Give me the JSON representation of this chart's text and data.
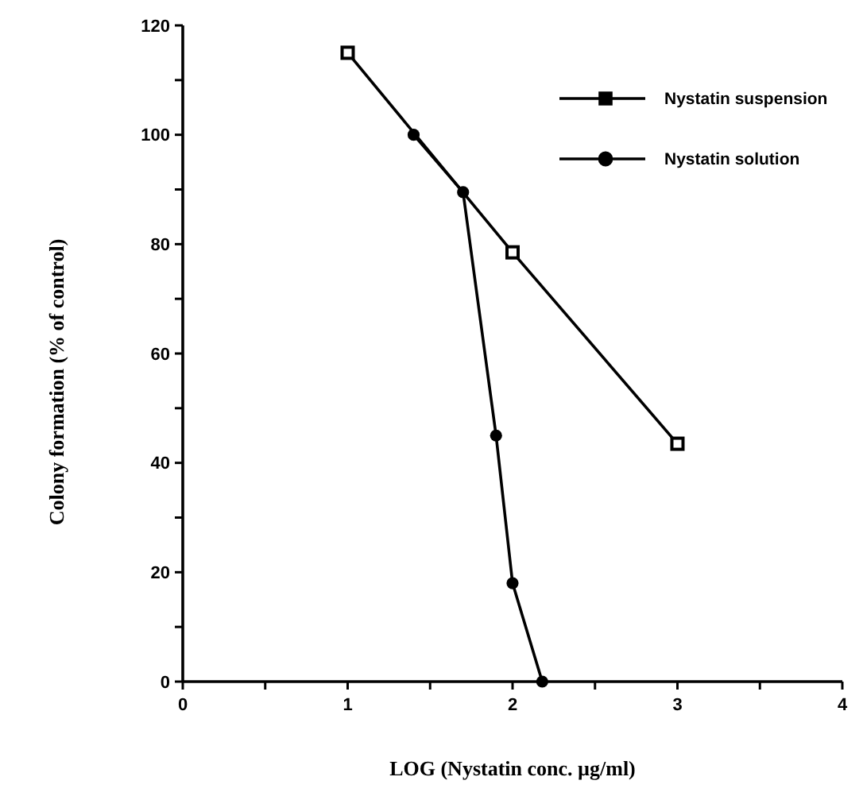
{
  "chart_data": {
    "type": "line",
    "xlabel": "LOG (Nystatin conc. µg/ml)",
    "ylabel": "Colony formation (% of control)",
    "xlim": [
      0,
      4
    ],
    "ylim": [
      0,
      120
    ],
    "xticks": [
      0,
      {
        "value": 0.5,
        "label": null
      },
      1,
      {
        "value": 1.5,
        "label": null
      },
      2,
      {
        "value": 2.5,
        "label": null
      },
      3,
      {
        "value": 3.5,
        "label": null
      },
      4
    ],
    "yticks": [
      0,
      {
        "value": 10,
        "label": null
      },
      20,
      {
        "value": 30,
        "label": null
      },
      40,
      {
        "value": 50,
        "label": null
      },
      60,
      {
        "value": 70,
        "label": null
      },
      80,
      {
        "value": 90,
        "label": null
      },
      100,
      {
        "value": 110,
        "label": null
      },
      120
    ],
    "legend": "top right",
    "grid": false,
    "series": [
      {
        "name": "Nystatin suspension",
        "color": "#000000",
        "marker": "square",
        "x": [
          1,
          2,
          3
        ],
        "values": [
          115,
          78.5,
          43.5
        ]
      },
      {
        "name": "Nystatin solution",
        "color": "#000000",
        "marker": "circle",
        "x": [
          1.4,
          1.7,
          1.9,
          2.0,
          2.18
        ],
        "values": [
          100,
          89.5,
          45,
          18,
          0
        ]
      }
    ]
  }
}
